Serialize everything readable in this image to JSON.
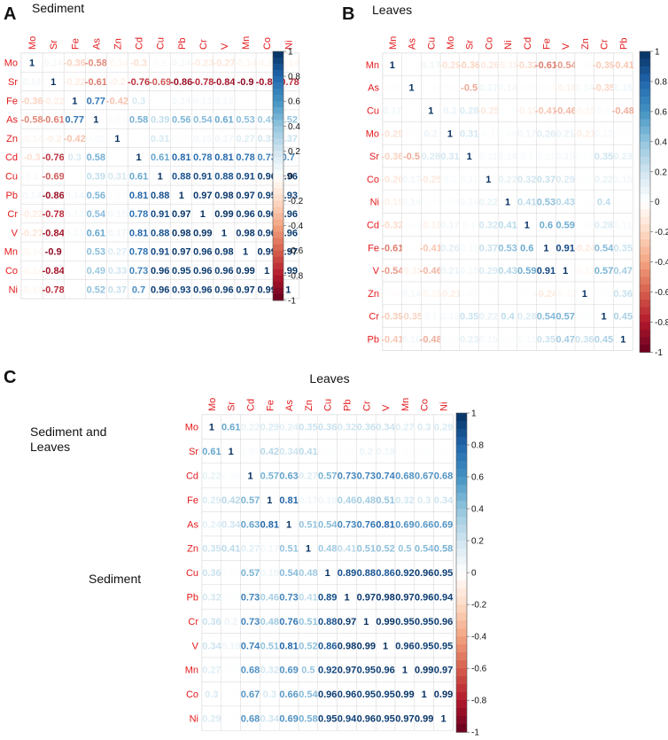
{
  "chart_data": [
    {
      "type": "heatmap",
      "panel": "A",
      "title": "Sediment",
      "variables": [
        "Mo",
        "Sr",
        "Fe",
        "As",
        "Zn",
        "Cd",
        "Cu",
        "Pb",
        "Cr",
        "V",
        "Mn",
        "Co",
        "Ni"
      ],
      "colorbar": {
        "range": [
          -1,
          1
        ],
        "ticks": [
          "1",
          "0.8",
          "0.6",
          "0.4",
          "0.2",
          "0",
          "-0.2",
          "-0.4",
          "-0.6",
          "-0.8",
          "-1"
        ]
      },
      "matrix": [
        [
          1,
          0.14,
          -0.36,
          -0.58,
          -0.14,
          -0.3,
          0.1,
          0.14,
          -0.23,
          -0.27,
          -0.14,
          -0.14,
          -0.14
        ],
        [
          0.14,
          1,
          -0.22,
          -0.61,
          -0.2,
          -0.76,
          -0.69,
          -0.86,
          -0.78,
          -0.84,
          -0.9,
          -0.84,
          -0.78
        ],
        [
          -0.36,
          -0.22,
          1,
          0.77,
          -0.42,
          0.3,
          0.01,
          0.14,
          0.13,
          0.13,
          0.01,
          0.01,
          0.01
        ],
        [
          -0.58,
          -0.61,
          0.77,
          1,
          0.09,
          0.58,
          0.39,
          0.56,
          0.54,
          0.61,
          0.53,
          0.49,
          0.52
        ],
        [
          -0.14,
          -0.2,
          -0.42,
          0.09,
          1,
          0.01,
          0.31,
          0.07,
          0.15,
          0.17,
          0.27,
          0.33,
          0.37
        ],
        [
          -0.3,
          -0.76,
          0.3,
          0.58,
          0.01,
          1,
          0.61,
          0.81,
          0.78,
          0.81,
          0.78,
          0.73,
          0.7
        ],
        [
          0.1,
          -0.69,
          0.01,
          0.39,
          0.31,
          0.61,
          1,
          0.88,
          0.91,
          0.88,
          0.91,
          0.96,
          0.96
        ],
        [
          0.14,
          -0.86,
          0.14,
          0.56,
          0.07,
          0.81,
          0.88,
          1,
          0.97,
          0.98,
          0.97,
          0.95,
          0.93
        ],
        [
          -0.23,
          -0.78,
          0.13,
          0.54,
          0.15,
          0.78,
          0.91,
          0.97,
          1,
          0.99,
          0.96,
          0.96,
          0.96
        ],
        [
          -0.27,
          -0.84,
          0.13,
          0.61,
          0.17,
          0.81,
          0.88,
          0.98,
          0.99,
          1,
          0.98,
          0.96,
          0.96
        ],
        [
          -0.14,
          -0.9,
          0.01,
          0.53,
          0.27,
          0.78,
          0.91,
          0.97,
          0.96,
          0.98,
          1,
          0.99,
          0.97
        ],
        [
          -0.14,
          -0.84,
          0.01,
          0.49,
          0.33,
          0.73,
          0.96,
          0.95,
          0.96,
          0.96,
          0.99,
          1,
          0.99
        ],
        [
          -0.14,
          -0.78,
          0.01,
          0.52,
          0.37,
          0.7,
          0.96,
          0.93,
          0.96,
          0.96,
          0.97,
          0.99,
          1
        ]
      ]
    },
    {
      "type": "heatmap",
      "panel": "B",
      "title": "Leaves",
      "variables": [
        "Mn",
        "As",
        "Cu",
        "Mo",
        "Sr",
        "Co",
        "Ni",
        "Cd",
        "Fe",
        "V",
        "Zn",
        "Cr",
        "Pb"
      ],
      "colorbar": {
        "range": [
          -1,
          1
        ],
        "ticks": [
          "1",
          "0.8",
          "0.6",
          "0.4",
          "0.2",
          "0",
          "-0.2",
          "-0.4",
          "-0.6",
          "-0.8",
          "-1"
        ]
      },
      "matrix": [
        [
          1,
          -0.05,
          0.17,
          -0.29,
          -0.36,
          -0.26,
          -0.19,
          -0.32,
          -0.61,
          -0.54,
          -0.05,
          -0.39,
          -0.41
        ],
        [
          -0.05,
          1,
          0.05,
          -0.05,
          -0.5,
          0.17,
          0.14,
          0.05,
          -0.05,
          -0.18,
          0.14,
          -0.35,
          0.16
        ],
        [
          0.17,
          0.05,
          1,
          0.2,
          0.28,
          -0.25,
          0.05,
          -0.19,
          -0.41,
          -0.46,
          -0.15,
          0.1,
          -0.48
        ],
        [
          -0.29,
          -0.05,
          0.2,
          1,
          0.31,
          0.1,
          0.08,
          0.17,
          0.26,
          0.21,
          -0.21,
          0.12,
          0.05
        ],
        [
          -0.36,
          -0.5,
          0.28,
          0.31,
          1,
          0.11,
          0.14,
          0.1,
          0.11,
          0.15,
          0.07,
          0.35,
          0.23
        ],
        [
          -0.26,
          0.17,
          -0.25,
          0.1,
          0.11,
          1,
          0.22,
          0.32,
          0.37,
          0.29,
          0.05,
          0.22,
          0.15
        ],
        [
          -0.19,
          0.14,
          0.05,
          0.08,
          0.14,
          0.22,
          1,
          0.41,
          0.53,
          0.43,
          0.05,
          0.4,
          0.05
        ],
        [
          -0.32,
          0.05,
          -0.19,
          0.17,
          0.1,
          0.32,
          0.41,
          1,
          0.6,
          0.59,
          0.05,
          0.28,
          0.11
        ],
        [
          -0.61,
          -0.05,
          -0.41,
          0.26,
          0.11,
          0.37,
          0.53,
          0.6,
          1,
          0.91,
          -0.24,
          0.54,
          0.35
        ],
        [
          -0.54,
          -0.18,
          -0.46,
          0.21,
          0.15,
          0.29,
          0.43,
          0.59,
          0.91,
          1,
          -0.12,
          0.57,
          0.47
        ],
        [
          -0.05,
          0.14,
          -0.15,
          -0.21,
          0.07,
          0.05,
          0.05,
          0.05,
          -0.24,
          -0.12,
          1,
          0.05,
          0.36
        ],
        [
          -0.39,
          -0.35,
          0.1,
          0.12,
          0.35,
          0.22,
          0.4,
          0.28,
          0.54,
          0.57,
          0.05,
          1,
          0.45
        ],
        [
          -0.41,
          0.16,
          -0.48,
          0.05,
          0.23,
          0.15,
          0.05,
          0.11,
          0.35,
          0.47,
          0.36,
          0.45,
          1
        ]
      ]
    },
    {
      "type": "heatmap",
      "panel": "C",
      "title": "Leaves",
      "row_label": "Sediment",
      "side_label": [
        "Sediment and",
        "Leaves"
      ],
      "variables": [
        "Mo",
        "Sr",
        "Cd",
        "Fe",
        "As",
        "Zn",
        "Cu",
        "Pb",
        "Cr",
        "V",
        "Mn",
        "Co",
        "Ni"
      ],
      "colorbar": {
        "range": [
          -1,
          1
        ],
        "ticks": [
          "1",
          "0.8",
          "0.6",
          "0.4",
          "0.2",
          "0",
          "-0.2",
          "-0.4",
          "-0.6",
          "-0.8",
          "-1"
        ]
      },
      "matrix": [
        [
          1,
          0.61,
          0.22,
          0.29,
          0.24,
          0.35,
          0.36,
          0.32,
          0.36,
          0.34,
          0.27,
          0.3,
          0.29
        ],
        [
          0.61,
          1,
          0.09,
          0.42,
          0.34,
          0.41,
          0.05,
          0.05,
          0.2,
          0.19,
          0.05,
          0.05,
          0.05
        ],
        [
          0.22,
          0.09,
          1,
          0.57,
          0.63,
          0.27,
          0.57,
          0.73,
          0.73,
          0.74,
          0.68,
          0.67,
          0.68
        ],
        [
          0.29,
          0.42,
          0.57,
          1,
          0.81,
          0.17,
          0.19,
          0.46,
          0.48,
          0.51,
          0.32,
          0.3,
          0.34
        ],
        [
          0.24,
          0.34,
          0.63,
          0.81,
          1,
          0.51,
          0.54,
          0.73,
          0.76,
          0.81,
          0.69,
          0.66,
          0.69
        ],
        [
          0.35,
          0.41,
          0.27,
          0.17,
          0.51,
          1,
          0.48,
          0.41,
          0.51,
          0.52,
          0.5,
          0.54,
          0.58
        ],
        [
          0.36,
          0.05,
          0.57,
          0.19,
          0.54,
          0.48,
          1,
          0.89,
          0.88,
          0.86,
          0.92,
          0.96,
          0.95
        ],
        [
          0.32,
          0.05,
          0.73,
          0.46,
          0.73,
          0.41,
          0.89,
          1,
          0.97,
          0.98,
          0.97,
          0.96,
          0.94
        ],
        [
          0.36,
          0.2,
          0.73,
          0.48,
          0.76,
          0.51,
          0.88,
          0.97,
          1,
          0.99,
          0.95,
          0.95,
          0.96
        ],
        [
          0.34,
          0.19,
          0.74,
          0.51,
          0.81,
          0.52,
          0.86,
          0.98,
          0.99,
          1,
          0.96,
          0.95,
          0.95
        ],
        [
          0.27,
          0.05,
          0.68,
          0.32,
          0.69,
          0.5,
          0.92,
          0.97,
          0.95,
          0.96,
          1,
          0.99,
          0.97
        ],
        [
          0.3,
          0.05,
          0.67,
          0.3,
          0.66,
          0.54,
          0.96,
          0.96,
          0.95,
          0.95,
          0.99,
          1,
          0.99
        ],
        [
          0.29,
          0.05,
          0.68,
          0.34,
          0.69,
          0.58,
          0.95,
          0.94,
          0.96,
          0.95,
          0.97,
          0.99,
          1
        ]
      ]
    }
  ]
}
